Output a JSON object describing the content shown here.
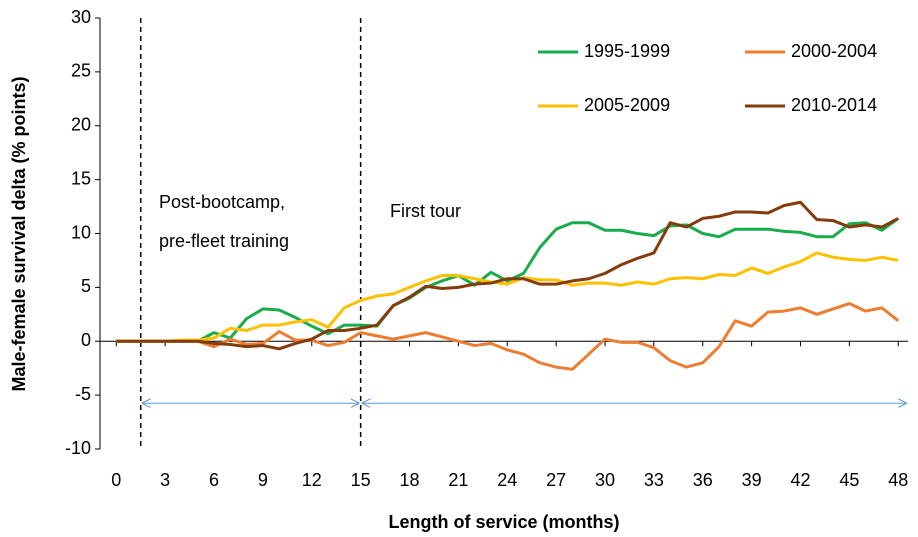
{
  "chart_data": {
    "type": "line",
    "y_label": "Male-female survival delta (% points)",
    "x_label": "Length of service (months)",
    "x": [
      0,
      1,
      2,
      3,
      4,
      5,
      6,
      7,
      8,
      9,
      10,
      11,
      12,
      13,
      14,
      15,
      16,
      17,
      18,
      19,
      20,
      21,
      22,
      23,
      24,
      25,
      26,
      27,
      28,
      29,
      30,
      31,
      32,
      33,
      34,
      35,
      36,
      37,
      38,
      39,
      40,
      41,
      42,
      43,
      44,
      45,
      46,
      47,
      48
    ],
    "series": [
      {
        "name": "1995-1999",
        "color": "#1aab4b",
        "values": [
          0,
          0,
          0,
          0,
          0,
          0,
          0.8,
          0.3,
          2.1,
          3.0,
          2.9,
          2.2,
          1.4,
          0.7,
          1.5,
          1.5,
          1.4,
          3.3,
          4.0,
          5.0,
          5.6,
          6.1,
          5.2,
          6.4,
          5.6,
          6.3,
          8.7,
          10.4,
          11.0,
          11.0,
          10.3,
          10.3,
          10.0,
          9.8,
          10.7,
          10.8,
          10.0,
          9.7,
          10.4,
          10.4,
          10.4,
          10.2,
          10.1,
          9.7,
          9.7,
          10.9,
          11.0,
          10.3,
          11.4
        ]
      },
      {
        "name": "2000-2004",
        "color": "#ed7d31",
        "values": [
          0,
          0,
          0,
          0,
          0,
          0,
          -0.5,
          0.2,
          -0.3,
          -0.2,
          0.9,
          0.1,
          0.1,
          -0.4,
          -0.1,
          0.8,
          0.5,
          0.2,
          0.5,
          0.8,
          0.4,
          0.0,
          -0.4,
          -0.2,
          -0.8,
          -1.2,
          -2.0,
          -2.4,
          -2.6,
          -1.2,
          0.2,
          -0.1,
          -0.1,
          -0.6,
          -1.8,
          -2.4,
          -2.0,
          -0.5,
          1.9,
          1.4,
          2.7,
          2.8,
          3.1,
          2.5,
          3.0,
          3.5,
          2.8,
          3.1,
          1.9
        ]
      },
      {
        "name": "2005-2009",
        "color": "#ffc000",
        "values": [
          0,
          0,
          0,
          0,
          0.1,
          0.1,
          0.3,
          1.2,
          1.0,
          1.5,
          1.5,
          1.8,
          2.0,
          1.3,
          3.1,
          3.8,
          4.2,
          4.4,
          5.0,
          5.6,
          6.1,
          6.1,
          5.8,
          5.5,
          5.3,
          5.9,
          5.7,
          5.7,
          5.2,
          5.4,
          5.4,
          5.2,
          5.5,
          5.3,
          5.8,
          5.9,
          5.8,
          6.2,
          6.1,
          6.8,
          6.3,
          6.9,
          7.4,
          8.2,
          7.8,
          7.6,
          7.5,
          7.8,
          7.5
        ]
      },
      {
        "name": "2010-2014",
        "color": "#843c0c",
        "values": [
          0,
          0,
          0,
          0,
          0,
          0,
          -0.2,
          -0.3,
          -0.5,
          -0.4,
          -0.7,
          -0.2,
          0.2,
          1.0,
          1.0,
          1.2,
          1.5,
          3.3,
          4.1,
          5.1,
          4.9,
          5.0,
          5.3,
          5.4,
          5.8,
          5.8,
          5.3,
          5.3,
          5.6,
          5.8,
          6.3,
          7.1,
          7.7,
          8.2,
          11.0,
          10.6,
          11.4,
          11.6,
          12.0,
          12.0,
          11.9,
          12.6,
          12.9,
          11.3,
          11.2,
          10.6,
          10.8,
          10.6,
          11.4
        ]
      }
    ],
    "xlim": [
      -1,
      48.6
    ],
    "ylim": [
      -10,
      30
    ],
    "xticks": [
      0,
      3,
      6,
      9,
      12,
      15,
      18,
      21,
      24,
      27,
      30,
      33,
      36,
      39,
      42,
      45,
      48
    ],
    "yticks": [
      -10,
      -5,
      0,
      5,
      10,
      15,
      20,
      25,
      30
    ],
    "vlines": [
      1.5,
      15
    ],
    "arrow_y": -5.75,
    "annotations": [
      "Post-bootcamp,",
      "pre-fleet training",
      "First tour"
    ],
    "grid": false,
    "legend": "upper right"
  }
}
